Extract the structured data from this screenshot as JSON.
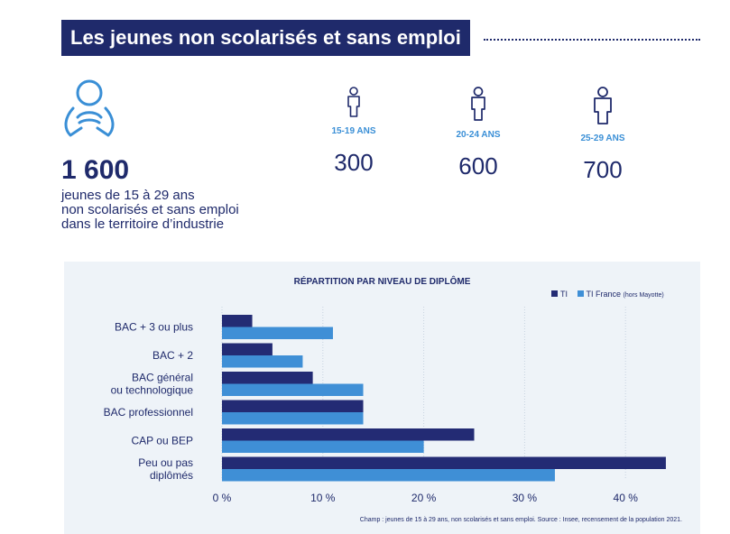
{
  "header": {
    "title": "Les jeunes non scolarisés et sans emploi"
  },
  "summary": {
    "icon": "person-seated-icon",
    "total": "1 600",
    "description_lines": [
      "jeunes de 15 à 29 ans",
      "non scolarisés et sans emploi",
      "dans le territoire d’industrie"
    ]
  },
  "age_groups": [
    {
      "icon": "person-icon",
      "label": "15-19 ANS",
      "value": "300"
    },
    {
      "icon": "person-icon",
      "label": "20-24 ANS",
      "value": "600"
    },
    {
      "icon": "person-icon",
      "label": "25-29 ANS",
      "value": "700"
    }
  ],
  "chart": {
    "title": "RÉPARTITION PAR NIVEAU DE DIPLÔME",
    "legend": [
      {
        "label": "TI",
        "sub": "",
        "color": "#232b74"
      },
      {
        "label": "TI France",
        "sub": "(hors Mayotte)",
        "color": "#3f8fd6"
      }
    ],
    "source": "Champ : jeunes de 15 à 29 ans, non scolarisés et sans emploi. Source : Insee, recensement de la population 2021."
  },
  "chart_data": {
    "type": "bar",
    "orientation": "horizontal",
    "title": "RÉPARTITION PAR NIVEAU DE DIPLÔME",
    "categories": [
      [
        "BAC + 3 ou plus"
      ],
      [
        "BAC + 2"
      ],
      [
        "BAC général",
        "ou technologique"
      ],
      [
        "BAC professionnel"
      ],
      [
        "CAP ou BEP"
      ],
      [
        "Peu ou pas",
        "diplômés"
      ]
    ],
    "series": [
      {
        "name": "TI",
        "values": [
          3,
          5,
          9,
          14,
          25,
          44
        ],
        "color": "#232b74"
      },
      {
        "name": "TI France (hors Mayotte)",
        "values": [
          11,
          8,
          14,
          14,
          20,
          33
        ],
        "color": "#3f8fd6"
      }
    ],
    "xlim": [
      0,
      45
    ],
    "xticks": [
      {
        "value": 0,
        "label": "0 %"
      },
      {
        "value": 10,
        "label": "10 %"
      },
      {
        "value": 20,
        "label": "20 %"
      },
      {
        "value": 30,
        "label": "30 %"
      },
      {
        "value": 40,
        "label": "40 %"
      }
    ],
    "grid": "vertical",
    "legend_position": "top-right"
  }
}
